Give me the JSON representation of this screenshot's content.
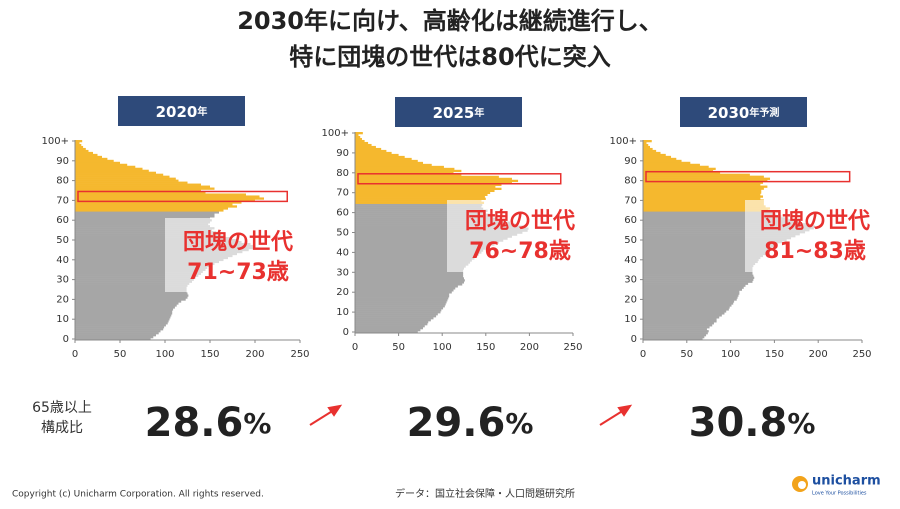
{
  "title": [
    "2030年に向け、高齢化は継続進行し、",
    "特に団塊の世代は80代に突入"
  ],
  "share_label": [
    "65歳以上",
    "構成比"
  ],
  "shares": [
    "28.6",
    "29.6",
    "30.8"
  ],
  "share_unit": "%",
  "footer": {
    "copyright": "Copyright (c) Unicharm Corporation. All rights reserved.",
    "source": "データ：国立社会保障・人口問題研究所",
    "logo": "unicharm",
    "logo_tagline": "Love Your Possibilities"
  },
  "chart_data": [
    {
      "type": "bar",
      "orientation": "horizontal",
      "header": {
        "year": "2020",
        "suffix": "年"
      },
      "categories": [
        "0",
        null,
        null,
        null,
        null,
        null,
        null,
        null,
        null,
        null,
        "10",
        null,
        null,
        null,
        null,
        null,
        null,
        null,
        null,
        null,
        "20",
        null,
        null,
        null,
        null,
        null,
        null,
        null,
        null,
        null,
        "30",
        null,
        null,
        null,
        null,
        null,
        null,
        null,
        null,
        null,
        "40",
        null,
        null,
        null,
        null,
        null,
        null,
        null,
        null,
        null,
        "50",
        null,
        null,
        null,
        null,
        null,
        null,
        null,
        null,
        null,
        "60",
        null,
        null,
        null,
        null,
        null,
        null,
        null,
        null,
        null,
        "70",
        null,
        null,
        null,
        null,
        null,
        null,
        null,
        null,
        null,
        "80",
        null,
        null,
        null,
        null,
        null,
        null,
        null,
        null,
        null,
        "90",
        null,
        null,
        null,
        null,
        null,
        null,
        null,
        null,
        null,
        "100+"
      ],
      "values": [
        84,
        87,
        90,
        93,
        95,
        98,
        99,
        101,
        103,
        104,
        105,
        106,
        107,
        108,
        108,
        109,
        111,
        113,
        115,
        118,
        123,
        125,
        126,
        125,
        124,
        124,
        124,
        125,
        127,
        130,
        132,
        134,
        137,
        140,
        142,
        145,
        147,
        150,
        155,
        160,
        165,
        170,
        175,
        180,
        186,
        193,
        199,
        200,
        195,
        185,
        180,
        173,
        165,
        160,
        157,
        152,
        155,
        150,
        148,
        150,
        152,
        150,
        155,
        155,
        160,
        165,
        170,
        180,
        175,
        185,
        200,
        210,
        205,
        190,
        145,
        140,
        155,
        150,
        140,
        125,
        115,
        112,
        105,
        98,
        90,
        82,
        75,
        67,
        58,
        50,
        43,
        36,
        30,
        25,
        20,
        15,
        12,
        9,
        7,
        5,
        8
      ],
      "color": "#a6a6a6",
      "highlight_color": "#f5b82e",
      "highlight_from": 65,
      "xlim": [
        0,
        250
      ],
      "xticks": [
        0,
        50,
        100,
        150,
        200,
        250
      ],
      "annotation": [
        "団塊の世代",
        "71~73歳"
      ],
      "highlight_ages": [
        71,
        73
      ],
      "box_color": "#e8312f"
    },
    {
      "type": "bar",
      "orientation": "horizontal",
      "header": {
        "year": "2025",
        "suffix": "年"
      },
      "categories": [
        "0",
        null,
        null,
        null,
        null,
        null,
        null,
        null,
        null,
        null,
        "10",
        null,
        null,
        null,
        null,
        null,
        null,
        null,
        null,
        null,
        "20",
        null,
        null,
        null,
        null,
        null,
        null,
        null,
        null,
        null,
        "30",
        null,
        null,
        null,
        null,
        null,
        null,
        null,
        null,
        null,
        "40",
        null,
        null,
        null,
        null,
        null,
        null,
        null,
        null,
        null,
        "50",
        null,
        null,
        null,
        null,
        null,
        null,
        null,
        null,
        null,
        "60",
        null,
        null,
        null,
        null,
        null,
        null,
        null,
        null,
        null,
        "70",
        null,
        null,
        null,
        null,
        null,
        null,
        null,
        null,
        null,
        "80",
        null,
        null,
        null,
        null,
        null,
        null,
        null,
        null,
        null,
        "90",
        null,
        null,
        null,
        null,
        null,
        null,
        null,
        null,
        null,
        "100+"
      ],
      "values": [
        72,
        75,
        78,
        80,
        83,
        84,
        87,
        90,
        93,
        95,
        98,
        99,
        101,
        103,
        104,
        105,
        106,
        107,
        108,
        108,
        111,
        113,
        115,
        118,
        123,
        125,
        126,
        125,
        124,
        124,
        124,
        124,
        125,
        127,
        130,
        132,
        134,
        137,
        140,
        142,
        145,
        147,
        150,
        155,
        160,
        165,
        170,
        175,
        180,
        186,
        192,
        198,
        199,
        194,
        184,
        178,
        171,
        163,
        158,
        155,
        150,
        152,
        147,
        145,
        146,
        148,
        145,
        150,
        149,
        152,
        155,
        160,
        168,
        161,
        168,
        180,
        187,
        180,
        165,
        122,
        113,
        122,
        114,
        102,
        88,
        78,
        72,
        65,
        57,
        50,
        42,
        36,
        30,
        24,
        19,
        15,
        11,
        8,
        6,
        4,
        9
      ],
      "color": "#a6a6a6",
      "highlight_color": "#f5b82e",
      "highlight_from": 65,
      "xlim": [
        0,
        250
      ],
      "xticks": [
        0,
        50,
        100,
        150,
        200,
        250
      ],
      "annotation": [
        "団塊の世代",
        "76~78歳"
      ],
      "highlight_ages": [
        76,
        78
      ],
      "box_color": "#e8312f"
    },
    {
      "type": "bar",
      "orientation": "horizontal",
      "header": {
        "year": "2030",
        "suffix": "年予測"
      },
      "categories": [
        "0",
        null,
        null,
        null,
        null,
        null,
        null,
        null,
        null,
        null,
        "10",
        null,
        null,
        null,
        null,
        null,
        null,
        null,
        null,
        null,
        "20",
        null,
        null,
        null,
        null,
        null,
        null,
        null,
        null,
        null,
        "30",
        null,
        null,
        null,
        null,
        null,
        null,
        null,
        null,
        null,
        "40",
        null,
        null,
        null,
        null,
        null,
        null,
        null,
        null,
        null,
        "50",
        null,
        null,
        null,
        null,
        null,
        null,
        null,
        null,
        null,
        "60",
        null,
        null,
        null,
        null,
        null,
        null,
        null,
        null,
        null,
        "70",
        null,
        null,
        null,
        null,
        null,
        null,
        null,
        null,
        null,
        "80",
        null,
        null,
        null,
        null,
        null,
        null,
        null,
        null,
        null,
        "90",
        null,
        null,
        null,
        null,
        null,
        null,
        null,
        null,
        null,
        "100+"
      ],
      "values": [
        68,
        70,
        72,
        74,
        75,
        73,
        76,
        79,
        81,
        84,
        84,
        87,
        90,
        93,
        95,
        98,
        99,
        101,
        103,
        104,
        107,
        108,
        109,
        110,
        110,
        113,
        115,
        117,
        120,
        125,
        126,
        127,
        126,
        125,
        125,
        125,
        125,
        126,
        128,
        131,
        132,
        134,
        137,
        140,
        142,
        145,
        147,
        150,
        154,
        159,
        164,
        169,
        174,
        179,
        185,
        190,
        195,
        196,
        190,
        180,
        173,
        166,
        158,
        152,
        149,
        143,
        145,
        140,
        138,
        138,
        138,
        134,
        137,
        134,
        135,
        135,
        138,
        142,
        134,
        137,
        142,
        145,
        138,
        122,
        88,
        80,
        83,
        75,
        65,
        54,
        44,
        38,
        32,
        26,
        20,
        15,
        11,
        8,
        6,
        4,
        10
      ],
      "color": "#a6a6a6",
      "highlight_color": "#f5b82e",
      "highlight_from": 65,
      "xlim": [
        0,
        250
      ],
      "xticks": [
        0,
        50,
        100,
        150,
        200,
        250
      ],
      "annotation": [
        "団塊の世代",
        "81~83歳"
      ],
      "highlight_ages": [
        81,
        83
      ],
      "box_color": "#e8312f"
    }
  ]
}
